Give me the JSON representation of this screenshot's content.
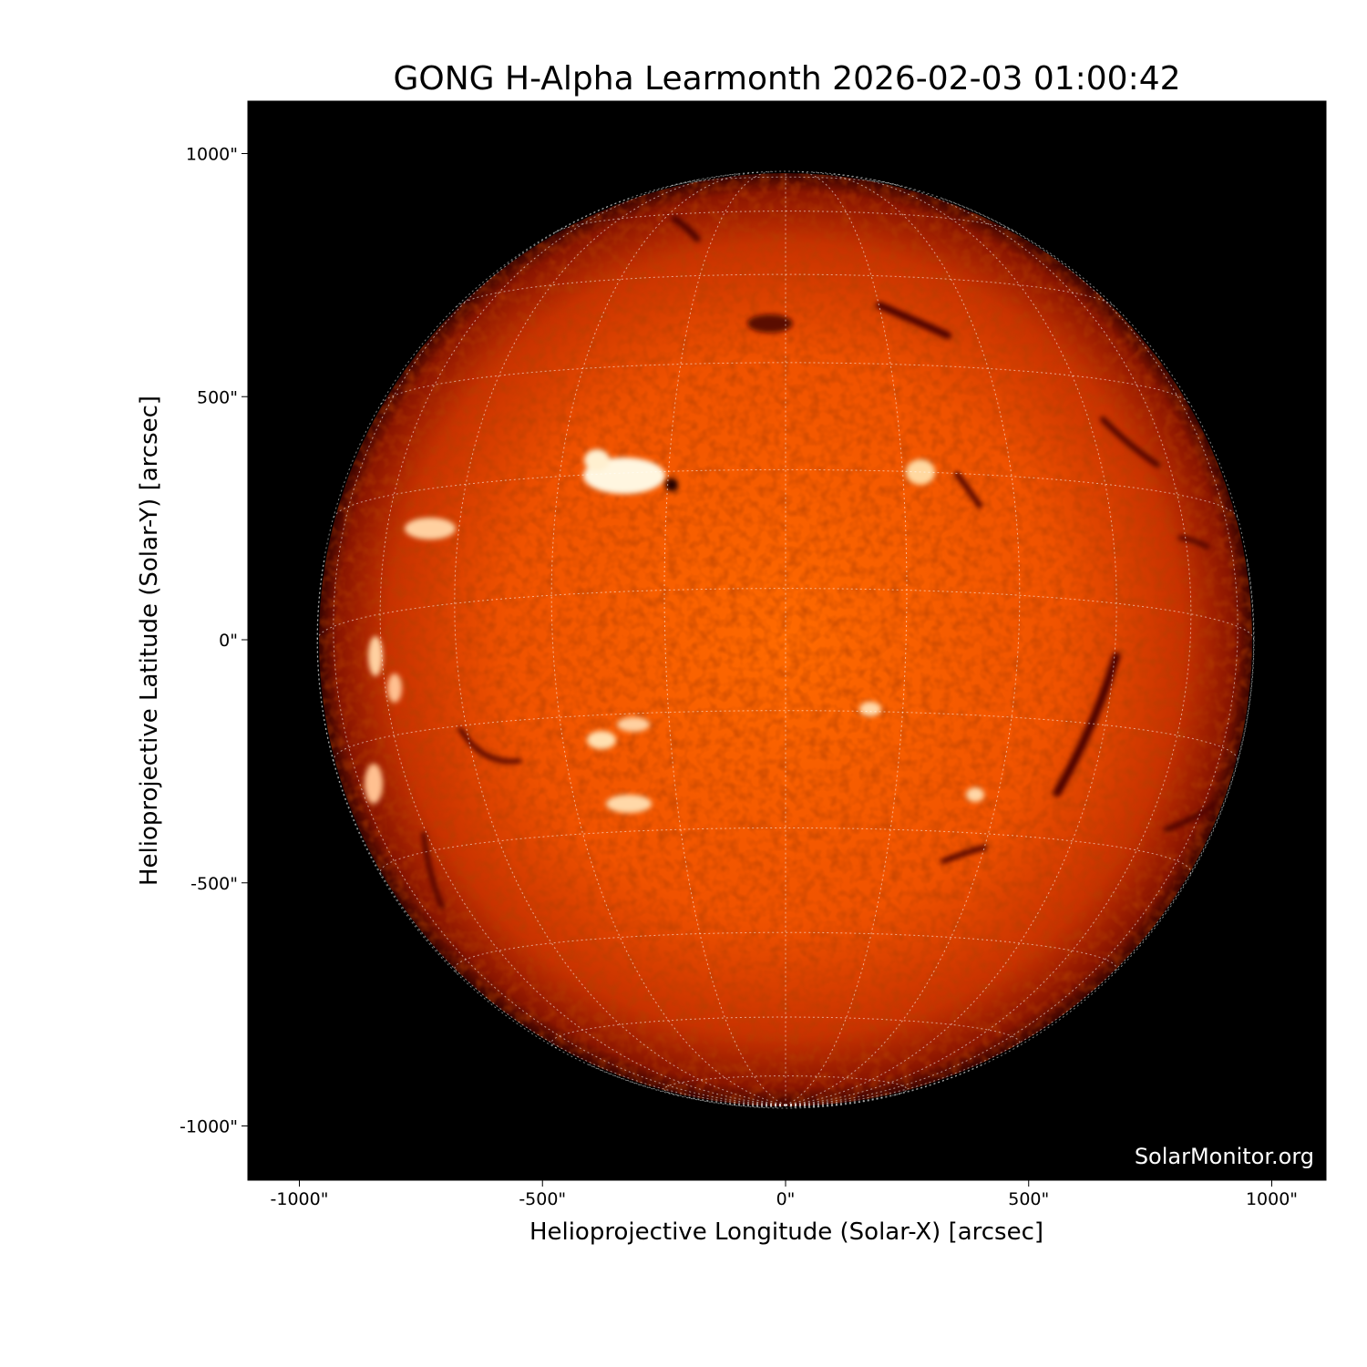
{
  "title": "GONG H-Alpha Learmonth 2026-02-03 01:00:42",
  "xaxis": {
    "label": "Helioprojective Longitude (Solar-X) [arcsec]",
    "ticks": [
      -1000,
      -500,
      0,
      500,
      1000
    ],
    "tick_labels": [
      "-1000\"",
      "-500\"",
      "0\"",
      "500\"",
      "1000\""
    ],
    "range": [
      -1107,
      1110
    ]
  },
  "yaxis": {
    "label": "Helioprojective Latitude (Solar-Y) [arcsec]",
    "ticks": [
      1000,
      500,
      0,
      -500,
      -1000
    ],
    "tick_labels": [
      "1000\"",
      "500\"",
      "0\"",
      "-500\"",
      "-1000\""
    ],
    "range": [
      -1108,
      1107
    ]
  },
  "watermark": "SolarMonitor.org",
  "solar_radius_arcsec": 960,
  "grid_spacing_deg": 15,
  "colors": {
    "background": "#000000",
    "disk_center": "#ff6a00",
    "disk_limb": "#5a0800",
    "grid": "#ffffff"
  }
}
